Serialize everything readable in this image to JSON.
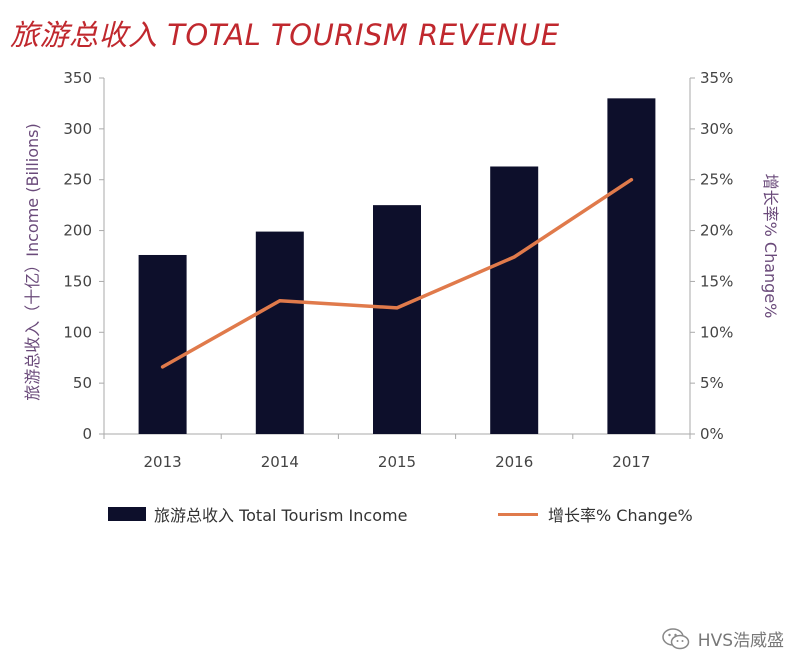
{
  "title": "旅游总收入 TOTAL TOURISM REVENUE",
  "watermark": "HVS浩威盛",
  "chart_data": {
    "type": "bar",
    "categories": [
      "2013",
      "2014",
      "2015",
      "2016",
      "2017"
    ],
    "series": [
      {
        "name": "旅游总收入 Total Tourism Income",
        "type": "bar",
        "axis": "left",
        "values": [
          176,
          199,
          225,
          263,
          330
        ],
        "color": "#0d0f2b"
      },
      {
        "name": "增长率% Change%",
        "type": "line",
        "axis": "right",
        "values": [
          6.6,
          13.1,
          12.4,
          17.4,
          25.0
        ],
        "color": "#e07a4b"
      }
    ],
    "ylabel": "旅游总收入（十亿）Income (Billions)",
    "y2label": "增长率% Change%",
    "ylim": [
      0,
      350
    ],
    "y2lim": [
      0,
      35
    ],
    "yticks": [
      "0",
      "50",
      "100",
      "150",
      "200",
      "250",
      "300",
      "350"
    ],
    "y2ticks": [
      "0%",
      "5%",
      "10%",
      "15%",
      "20%",
      "25%",
      "30%",
      "35%"
    ],
    "grid": false,
    "legend_position": "bottom"
  }
}
